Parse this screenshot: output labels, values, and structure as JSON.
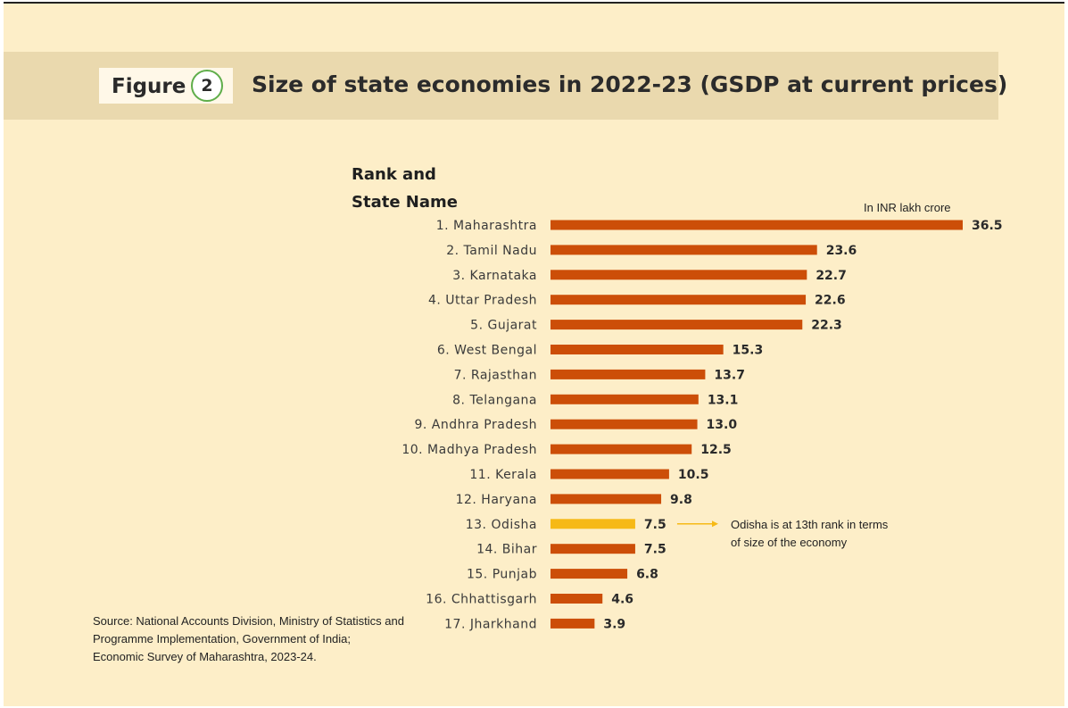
{
  "figure": {
    "label": "Figure",
    "number": "2"
  },
  "title": "Size of state economies in 2022-23 (GSDP at current prices)",
  "category_header": [
    "Rank and",
    "State Name"
  ],
  "unit_label": "In INR lakh crore",
  "source": [
    "Source: National Accounts Division, Ministry of Statistics and",
    "Programme Implementation, Government of India;",
    "Economic Survey of Maharashtra, 2023-24."
  ],
  "annotation": {
    "target": "13. Odisha",
    "lines": [
      "Odisha is at 13th rank in terms",
      "of size of the economy"
    ]
  },
  "colors": {
    "bar": "#cc4e08",
    "highlight": "#f6b916",
    "background": "#fdeec8",
    "title_band": "#ead9ae",
    "figure_ring": "#5fae4a"
  },
  "chart_data": {
    "type": "bar",
    "orientation": "horizontal",
    "categories": [
      "1. Maharashtra",
      "2. Tamil Nadu",
      "3. Karnataka",
      "4. Uttar Pradesh",
      "5. Gujarat",
      "6. West Bengal",
      "7. Rajasthan",
      "8. Telangana",
      "9. Andhra Pradesh",
      "10. Madhya Pradesh",
      "11. Kerala",
      "12. Haryana",
      "13. Odisha",
      "14. Bihar",
      "15. Punjab",
      "16. Chhattisgarh",
      "17. Jharkhand"
    ],
    "values": [
      36.5,
      23.6,
      22.7,
      22.6,
      22.3,
      15.3,
      13.7,
      13.1,
      13.0,
      12.5,
      10.5,
      9.8,
      7.5,
      7.5,
      6.8,
      4.6,
      3.9
    ],
    "value_labels": [
      "36.5",
      "23.6",
      "22.7",
      "22.6",
      "22.3",
      "15.3",
      "13.7",
      "13.1",
      "13.0",
      "12.5",
      "10.5",
      "9.8",
      "7.5",
      "7.5",
      "6.8",
      "4.6",
      "3.9"
    ],
    "highlight_index": 12,
    "xlim": [
      0,
      36.5
    ],
    "grid": false
  }
}
